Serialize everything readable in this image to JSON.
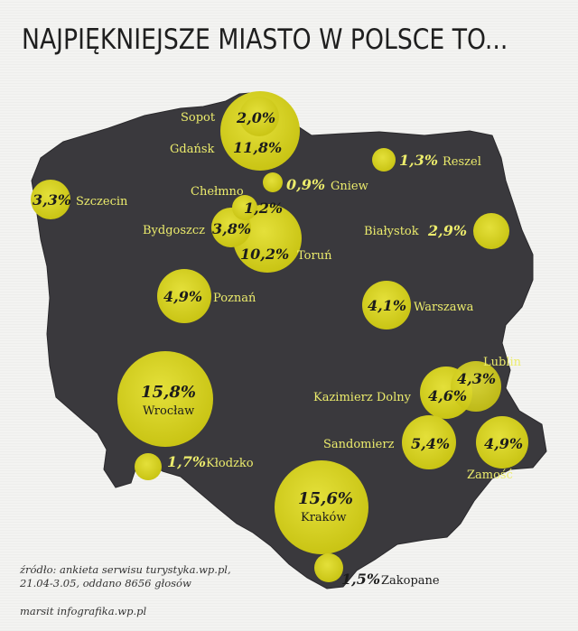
{
  "title": "NAJPIĘKNIEJSZE MIASTO W POLSCE TO...",
  "colors": {
    "map_fill": "#3a393d",
    "bubble": "#d9d51f",
    "label_yellow": "#ecec6c",
    "background": "#f3f3f1"
  },
  "cities": [
    {
      "name": "Sopot",
      "pct": "2,0%",
      "value": 2.0
    },
    {
      "name": "Gdańsk",
      "pct": "11,8%",
      "value": 11.8
    },
    {
      "name": "Reszel",
      "pct": "1,3%",
      "value": 1.3
    },
    {
      "name": "Gniew",
      "pct": "0,9%",
      "value": 0.9
    },
    {
      "name": "Chełmno",
      "pct": "1,2%",
      "value": 1.2
    },
    {
      "name": "Szczecin",
      "pct": "3,3%",
      "value": 3.3
    },
    {
      "name": "Bydgoszcz",
      "pct": "3,8%",
      "value": 3.8
    },
    {
      "name": "Toruń",
      "pct": "10,2%",
      "value": 10.2
    },
    {
      "name": "Białystok",
      "pct": "2,9%",
      "value": 2.9
    },
    {
      "name": "Poznań",
      "pct": "4,9%",
      "value": 4.9
    },
    {
      "name": "Warszawa",
      "pct": "4,1%",
      "value": 4.1
    },
    {
      "name": "Lublin",
      "pct": "4,3%",
      "value": 4.3
    },
    {
      "name": "Kazimierz Dolny",
      "pct": "4,6%",
      "value": 4.6
    },
    {
      "name": "Wrocław",
      "pct": "15,8%",
      "value": 15.8
    },
    {
      "name": "Sandomierz",
      "pct": "5,4%",
      "value": 5.4
    },
    {
      "name": "Zamość",
      "pct": "4,9%",
      "value": 4.9
    },
    {
      "name": "Kłodzko",
      "pct": "1,7%",
      "value": 1.7
    },
    {
      "name": "Kraków",
      "pct": "15,6%",
      "value": 15.6
    },
    {
      "name": "Zakopane",
      "pct": "1,5%",
      "value": 1.5
    }
  ],
  "source_line1": "źródło: ankieta serwisu turystyka.wp.pl,",
  "source_line2": "21.04-3.05, oddano 8656 głosów",
  "credit": "marsit infografika.wp.pl"
}
